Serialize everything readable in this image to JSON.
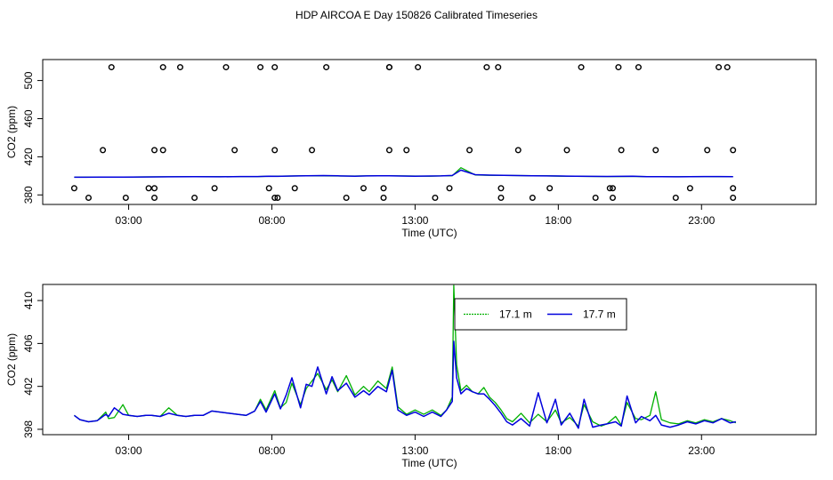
{
  "title": "HDP AIRCOA E  Day 150826  Calibrated Timeseries",
  "colors": {
    "green": "#00b000",
    "blue": "#0000dd",
    "axis": "#000000"
  },
  "chart_data": [
    {
      "type": "scatter+line",
      "xlabel": "Time (UTC)",
      "ylabel": "CO2 (ppm)",
      "xlim": [
        0,
        27
      ],
      "ylim": [
        370,
        522
      ],
      "xticks": [
        3,
        8,
        13,
        18,
        23
      ],
      "xtick_labels": [
        "03:00",
        "08:00",
        "13:00",
        "18:00",
        "23:00"
      ],
      "yticks": [
        380,
        420,
        460,
        500
      ],
      "ytick_labels": [
        "380",
        "420",
        "460",
        "500"
      ],
      "calibration_points": {
        "x": [
          1.6,
          1.1,
          2.1,
          2.4,
          2.9,
          3.7,
          3.9,
          3.9,
          3.9,
          4.2,
          4.2,
          4.8,
          5.3,
          6.0,
          6.4,
          6.7,
          7.6,
          7.9,
          8.1,
          8.1,
          8.1,
          8.2,
          8.8,
          9.4,
          9.9,
          10.6,
          11.2,
          11.9,
          11.9,
          12.1,
          12.1,
          12.1,
          12.7,
          13.1,
          13.7,
          14.2,
          14.9,
          15.5,
          15.9,
          16.0,
          16.0,
          16.6,
          17.1,
          17.7,
          18.3,
          18.8,
          19.3,
          19.8,
          19.9,
          19.9,
          20.1,
          20.2,
          20.8,
          21.4,
          22.1,
          22.6,
          23.2,
          23.6,
          23.9,
          24.1,
          24.1,
          24.1
        ],
        "y": [
          377,
          387,
          427,
          514,
          377,
          387,
          377,
          387,
          427,
          514,
          427,
          514,
          377,
          387,
          514,
          427,
          514,
          387,
          377,
          514,
          427,
          377,
          387,
          427,
          514,
          377,
          387,
          377,
          387,
          514,
          427,
          514,
          427,
          514,
          377,
          387,
          427,
          514,
          514,
          387,
          377,
          427,
          377,
          387,
          427,
          514,
          377,
          387,
          377,
          387,
          514,
          427,
          514,
          427,
          377,
          387,
          427,
          514,
          514,
          387,
          377,
          427
        ]
      },
      "series": [
        {
          "color": "green",
          "x": [
            1.1,
            1.5,
            2.0,
            2.8,
            3.5,
            4.4,
            5.3,
            6.2,
            6.9,
            7.5,
            7.9,
            8.2,
            8.7,
            9.2,
            9.8,
            10.3,
            10.9,
            11.3,
            11.7,
            12.1,
            12.5,
            13.0,
            13.5,
            13.9,
            14.3,
            14.6,
            15.1,
            15.6,
            16.1,
            16.6,
            17.1,
            17.6,
            18.1,
            18.6,
            19.1,
            19.7,
            20.1,
            20.6,
            21.1,
            21.6,
            22.1,
            22.6,
            23.1,
            23.6,
            24.1
          ],
          "y": [
            398.5,
            398.6,
            398.5,
            398.6,
            398.9,
            399.0,
            399.1,
            399.1,
            399.3,
            399.3,
            399.6,
            399.7,
            399.8,
            400.1,
            400.0,
            399.8,
            399.8,
            399.9,
            400.0,
            400.0,
            399.9,
            399.8,
            399.7,
            399.9,
            400.1,
            408.5,
            401.0,
            400.6,
            400.4,
            400.3,
            400.1,
            400.0,
            399.7,
            399.6,
            399.4,
            399.3,
            399.3,
            399.4,
            399.2,
            399.0,
            399.0,
            399.1,
            399.3,
            399.2,
            399.2
          ]
        },
        {
          "color": "blue",
          "x": [
            1.1,
            1.5,
            2.0,
            2.8,
            3.5,
            4.4,
            5.3,
            6.2,
            6.9,
            7.5,
            7.9,
            8.2,
            8.7,
            9.2,
            9.8,
            10.3,
            10.9,
            11.3,
            11.7,
            12.1,
            12.5,
            13.0,
            13.5,
            13.9,
            14.3,
            14.6,
            15.1,
            15.6,
            16.1,
            16.6,
            17.1,
            17.6,
            18.1,
            18.6,
            19.1,
            19.7,
            20.1,
            20.6,
            21.1,
            21.6,
            22.1,
            22.6,
            23.1,
            23.6,
            24.1
          ],
          "y": [
            398.5,
            398.5,
            398.6,
            398.6,
            398.8,
            399.0,
            399.1,
            399.0,
            399.3,
            399.3,
            399.7,
            399.5,
            399.8,
            400.0,
            400.3,
            400.0,
            399.7,
            399.9,
            400.1,
            400.0,
            399.8,
            399.6,
            399.8,
            399.9,
            400.4,
            406.0,
            401.2,
            400.8,
            400.5,
            400.3,
            400.0,
            399.9,
            399.8,
            399.6,
            399.5,
            399.4,
            399.5,
            399.6,
            399.2,
            399.1,
            399.0,
            399.1,
            399.3,
            399.3,
            399.2
          ]
        }
      ]
    },
    {
      "type": "line",
      "xlabel": "Time (UTC)",
      "ylabel": "CO2 (ppm)",
      "xlim": [
        0,
        27
      ],
      "ylim": [
        397.5,
        411.5
      ],
      "xticks": [
        3,
        8,
        13,
        18,
        23
      ],
      "xtick_labels": [
        "03:00",
        "08:00",
        "13:00",
        "18:00",
        "23:00"
      ],
      "yticks": [
        398,
        402,
        406,
        410
      ],
      "ytick_labels": [
        "398",
        "402",
        "406",
        "410"
      ],
      "legend": {
        "position": "top-center",
        "entries": [
          {
            "name": "17.1 m",
            "color": "green"
          },
          {
            "name": "17.7 m",
            "color": "blue"
          }
        ]
      },
      "series": [
        {
          "name": "17.1 m",
          "color": "green",
          "x": [
            1.1,
            1.3,
            1.6,
            1.9,
            2.2,
            2.3,
            2.5,
            2.8,
            3.0,
            3.3,
            3.6,
            3.8,
            4.1,
            4.4,
            4.7,
            5.0,
            5.3,
            5.6,
            5.9,
            6.2,
            6.5,
            6.8,
            7.1,
            7.4,
            7.6,
            7.8,
            8.1,
            8.3,
            8.5,
            8.7,
            9.0,
            9.2,
            9.4,
            9.6,
            9.9,
            10.1,
            10.3,
            10.6,
            10.9,
            11.2,
            11.4,
            11.7,
            12.0,
            12.2,
            12.4,
            12.7,
            13.0,
            13.3,
            13.6,
            13.9,
            14.1,
            14.3,
            14.35,
            14.45,
            14.6,
            14.8,
            15.0,
            15.2,
            15.4,
            15.6,
            15.8,
            16.0,
            16.2,
            16.4,
            16.7,
            17.0,
            17.3,
            17.6,
            17.9,
            18.1,
            18.4,
            18.7,
            18.9,
            19.2,
            19.5,
            19.7,
            20.0,
            20.2,
            20.4,
            20.7,
            20.9,
            21.2,
            21.4,
            21.6,
            21.9,
            22.2,
            22.5,
            22.8,
            23.1,
            23.4,
            23.7,
            24.0,
            24.2
          ],
          "y": [
            399.3,
            398.9,
            398.7,
            398.8,
            399.6,
            399.0,
            399.1,
            400.3,
            399.3,
            399.2,
            399.3,
            399.3,
            399.2,
            400.0,
            399.3,
            399.2,
            399.3,
            399.3,
            399.7,
            399.6,
            399.5,
            399.4,
            399.3,
            399.7,
            400.8,
            399.8,
            401.6,
            400.0,
            400.5,
            402.3,
            400.3,
            401.8,
            402.5,
            403.2,
            401.7,
            402.6,
            401.5,
            403.0,
            401.2,
            402.0,
            401.5,
            402.5,
            401.8,
            403.8,
            400.1,
            399.4,
            399.8,
            399.4,
            399.8,
            399.3,
            399.8,
            401.0,
            411.4,
            404.0,
            401.6,
            402.1,
            401.5,
            401.3,
            401.9,
            401.0,
            400.5,
            399.8,
            399.0,
            398.7,
            399.5,
            398.6,
            399.4,
            398.7,
            399.8,
            398.6,
            399.1,
            398.3,
            400.3,
            398.7,
            398.3,
            398.5,
            399.2,
            398.4,
            400.5,
            399.0,
            398.9,
            399.3,
            401.5,
            398.9,
            398.6,
            398.5,
            398.8,
            398.6,
            398.9,
            398.7,
            399.0,
            398.8,
            398.6
          ]
        },
        {
          "name": "17.7 m",
          "color": "blue",
          "x": [
            1.1,
            1.3,
            1.6,
            1.9,
            2.2,
            2.3,
            2.5,
            2.8,
            3.0,
            3.3,
            3.6,
            3.8,
            4.1,
            4.4,
            4.7,
            5.0,
            5.3,
            5.6,
            5.9,
            6.2,
            6.5,
            6.8,
            7.1,
            7.4,
            7.6,
            7.8,
            8.1,
            8.3,
            8.5,
            8.7,
            9.0,
            9.2,
            9.4,
            9.6,
            9.9,
            10.1,
            10.3,
            10.6,
            10.9,
            11.2,
            11.4,
            11.7,
            12.0,
            12.2,
            12.4,
            12.7,
            13.0,
            13.3,
            13.6,
            13.9,
            14.1,
            14.3,
            14.35,
            14.45,
            14.6,
            14.8,
            15.0,
            15.2,
            15.4,
            15.6,
            15.8,
            16.0,
            16.2,
            16.4,
            16.7,
            17.0,
            17.3,
            17.6,
            17.9,
            18.1,
            18.4,
            18.7,
            18.9,
            19.2,
            19.5,
            19.7,
            20.0,
            20.2,
            20.4,
            20.7,
            20.9,
            21.2,
            21.4,
            21.6,
            21.9,
            22.2,
            22.5,
            22.8,
            23.1,
            23.4,
            23.7,
            24.0,
            24.2
          ],
          "y": [
            399.3,
            398.9,
            398.7,
            398.8,
            399.4,
            399.2,
            400.0,
            399.4,
            399.3,
            399.2,
            399.3,
            399.3,
            399.2,
            399.5,
            399.3,
            399.2,
            399.3,
            399.3,
            399.7,
            399.6,
            399.5,
            399.4,
            399.3,
            399.7,
            400.6,
            399.6,
            401.3,
            399.9,
            401.2,
            402.8,
            400.0,
            402.2,
            402.0,
            403.8,
            401.3,
            402.9,
            401.6,
            402.3,
            401.0,
            401.6,
            401.2,
            402.0,
            401.5,
            403.5,
            399.8,
            399.3,
            399.6,
            399.2,
            399.6,
            399.2,
            399.8,
            400.6,
            406.2,
            402.8,
            401.3,
            401.8,
            401.5,
            401.3,
            401.3,
            400.8,
            400.2,
            399.5,
            398.7,
            398.4,
            399.0,
            398.3,
            401.4,
            398.6,
            400.8,
            398.4,
            399.5,
            398.1,
            400.8,
            398.2,
            398.4,
            398.5,
            398.7,
            398.3,
            401.1,
            398.6,
            399.2,
            398.8,
            399.3,
            398.4,
            398.2,
            398.4,
            398.7,
            398.5,
            398.8,
            398.6,
            399.0,
            398.6,
            398.7
          ]
        }
      ]
    }
  ]
}
